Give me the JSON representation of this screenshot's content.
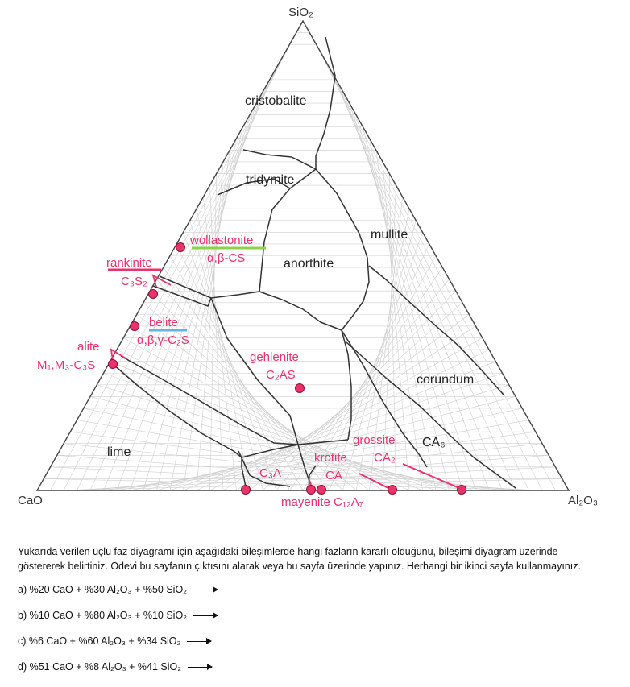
{
  "corners": {
    "top": "SiO₂",
    "left": "CaO",
    "right": "Al₂O₃"
  },
  "phases": {
    "cristobalite": "cristobalite",
    "tridymite": "tridymite",
    "mullite": "mullite",
    "anorthite": "anorthite",
    "corundum": "corundum",
    "lime": "lime",
    "c3a": "C₃A",
    "ca6": "CA₆"
  },
  "compounds": {
    "wollastonite": "wollastonite",
    "wollastonite_formula": "α,β-CS",
    "rankinite": "rankinite",
    "rankinite_formula": "C₃S₂",
    "belite": "belite",
    "belite_formula": "α,β,γ-C₂S",
    "alite": "alite",
    "alite_formula": "M₁,M₃-C₃S",
    "gehlenite": "gehlenite",
    "gehlenite_formula": "C₂AS",
    "grossite": "grossite",
    "grossite_formula": "CA₂",
    "krotite": "krotite",
    "krotite_formula": "CA",
    "mayenite": "mayenite C₁₂A₇"
  },
  "instructions": {
    "line1": "Yukarıda verilen üçlü faz diyagramı için aşağıdaki bileşimlerde hangi fazların kararlı olduğunu, bileşimi diyagram üzerinde",
    "line2": "göstererek belirtiniz. Ödevi bu sayfanın çıktısını alarak veya bu sayfa üzerinde yapınız. Herhangi bir ikinci sayfa kullanmayınız."
  },
  "questions": [
    {
      "label": "a)  %20 CaO + %30 Al₂O₃ + %50 SiO₂"
    },
    {
      "label": "b) %10 CaO + %80 Al₂O₃ + %10 SiO₂"
    },
    {
      "label": "c) %6 CaO + %60 Al₂O₃ + %34 SiO₂"
    },
    {
      "label": "d) %51 CaO + %8 Al₂O₃ + %41 SiO₂"
    }
  ],
  "colors": {
    "accent": "#e8336b",
    "boundary": "#333333",
    "grid": "#c9c9c9",
    "green": "#8bd14a",
    "blue": "#5bb6f0"
  }
}
